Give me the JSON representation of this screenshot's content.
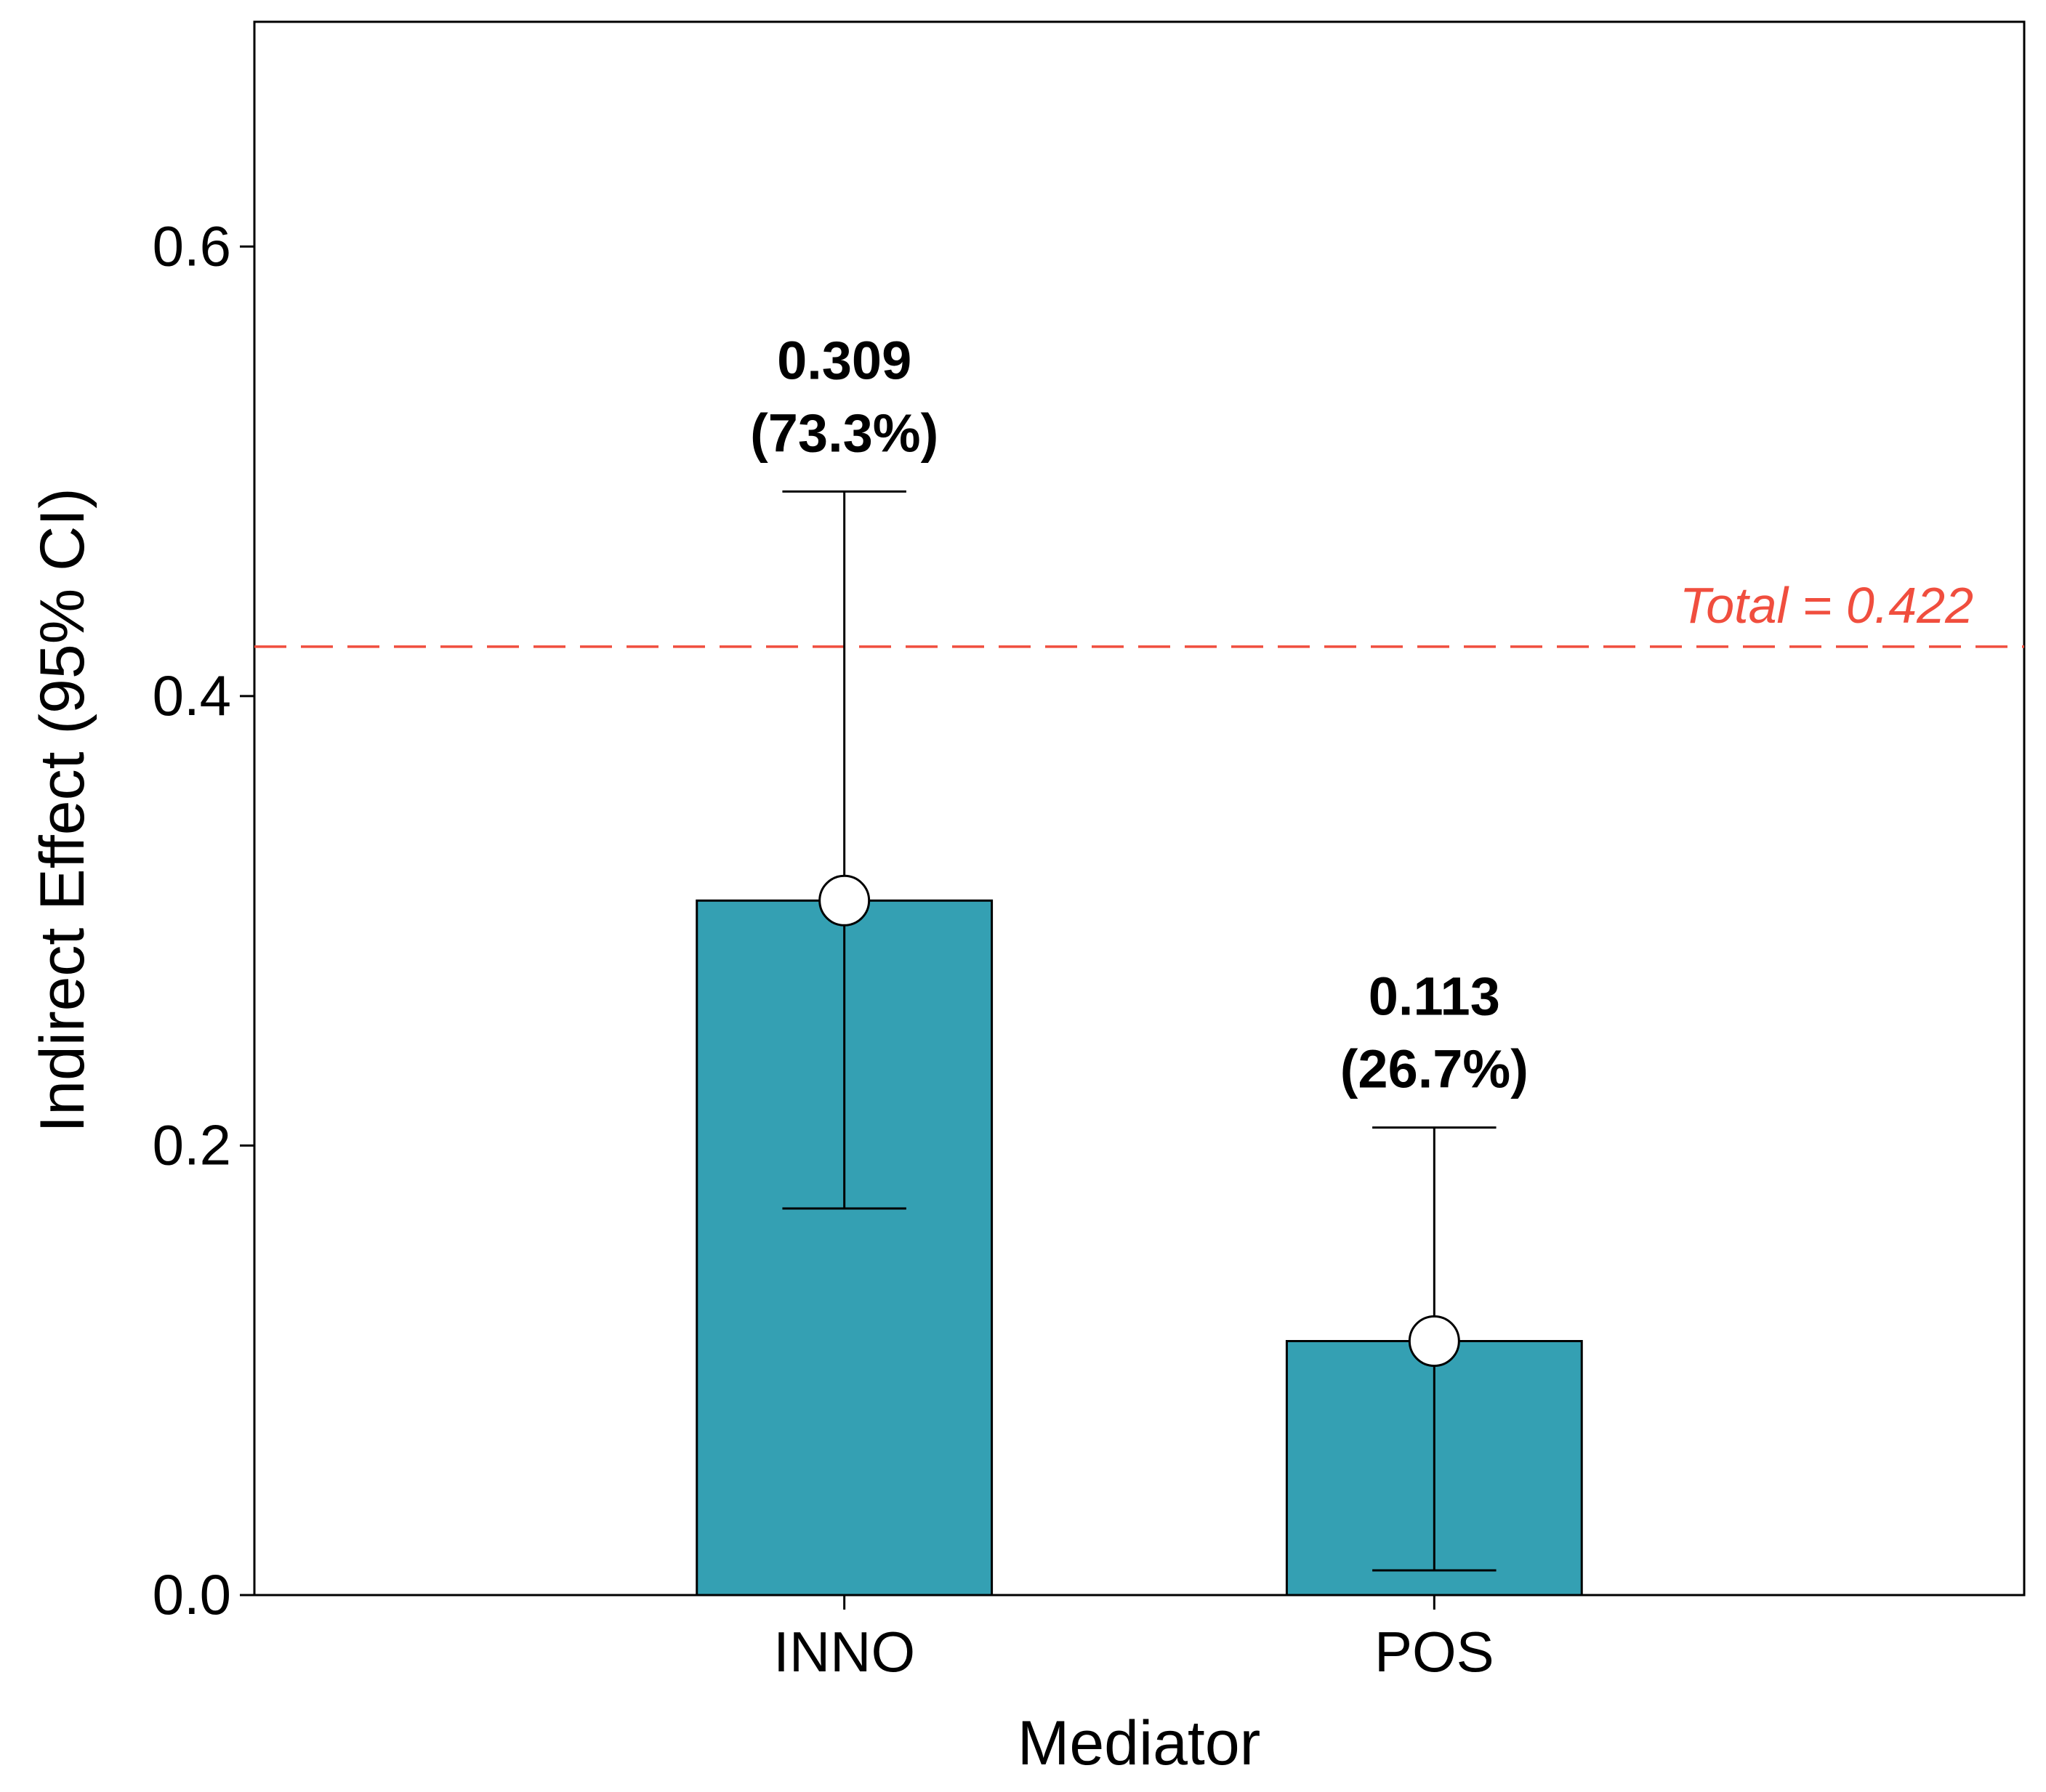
{
  "chart_data": {
    "type": "bar",
    "categories": [
      "INNO",
      "POS"
    ],
    "values": [
      0.309,
      0.113
    ],
    "ci_lower": [
      0.172,
      0.011
    ],
    "ci_upper": [
      0.491,
      0.208
    ],
    "data_labels": [
      {
        "value": "0.309",
        "percent": "(73.3%)"
      },
      {
        "value": "0.113",
        "percent": "(26.7%)"
      }
    ],
    "xlabel": "Mediator",
    "ylabel": "Indirect Effect (95% CI)",
    "ylim": [
      0,
      0.7
    ],
    "yticks": [
      0.0,
      0.2,
      0.4,
      0.6
    ],
    "ytick_labels": [
      "0.0",
      "0.2",
      "0.4",
      "0.6"
    ],
    "reference_line": {
      "value": 0.422,
      "label": "Total = 0.422",
      "color": "#f04e3e",
      "style": "dashed"
    },
    "bar_color": "#34a0b3",
    "grid": false
  }
}
